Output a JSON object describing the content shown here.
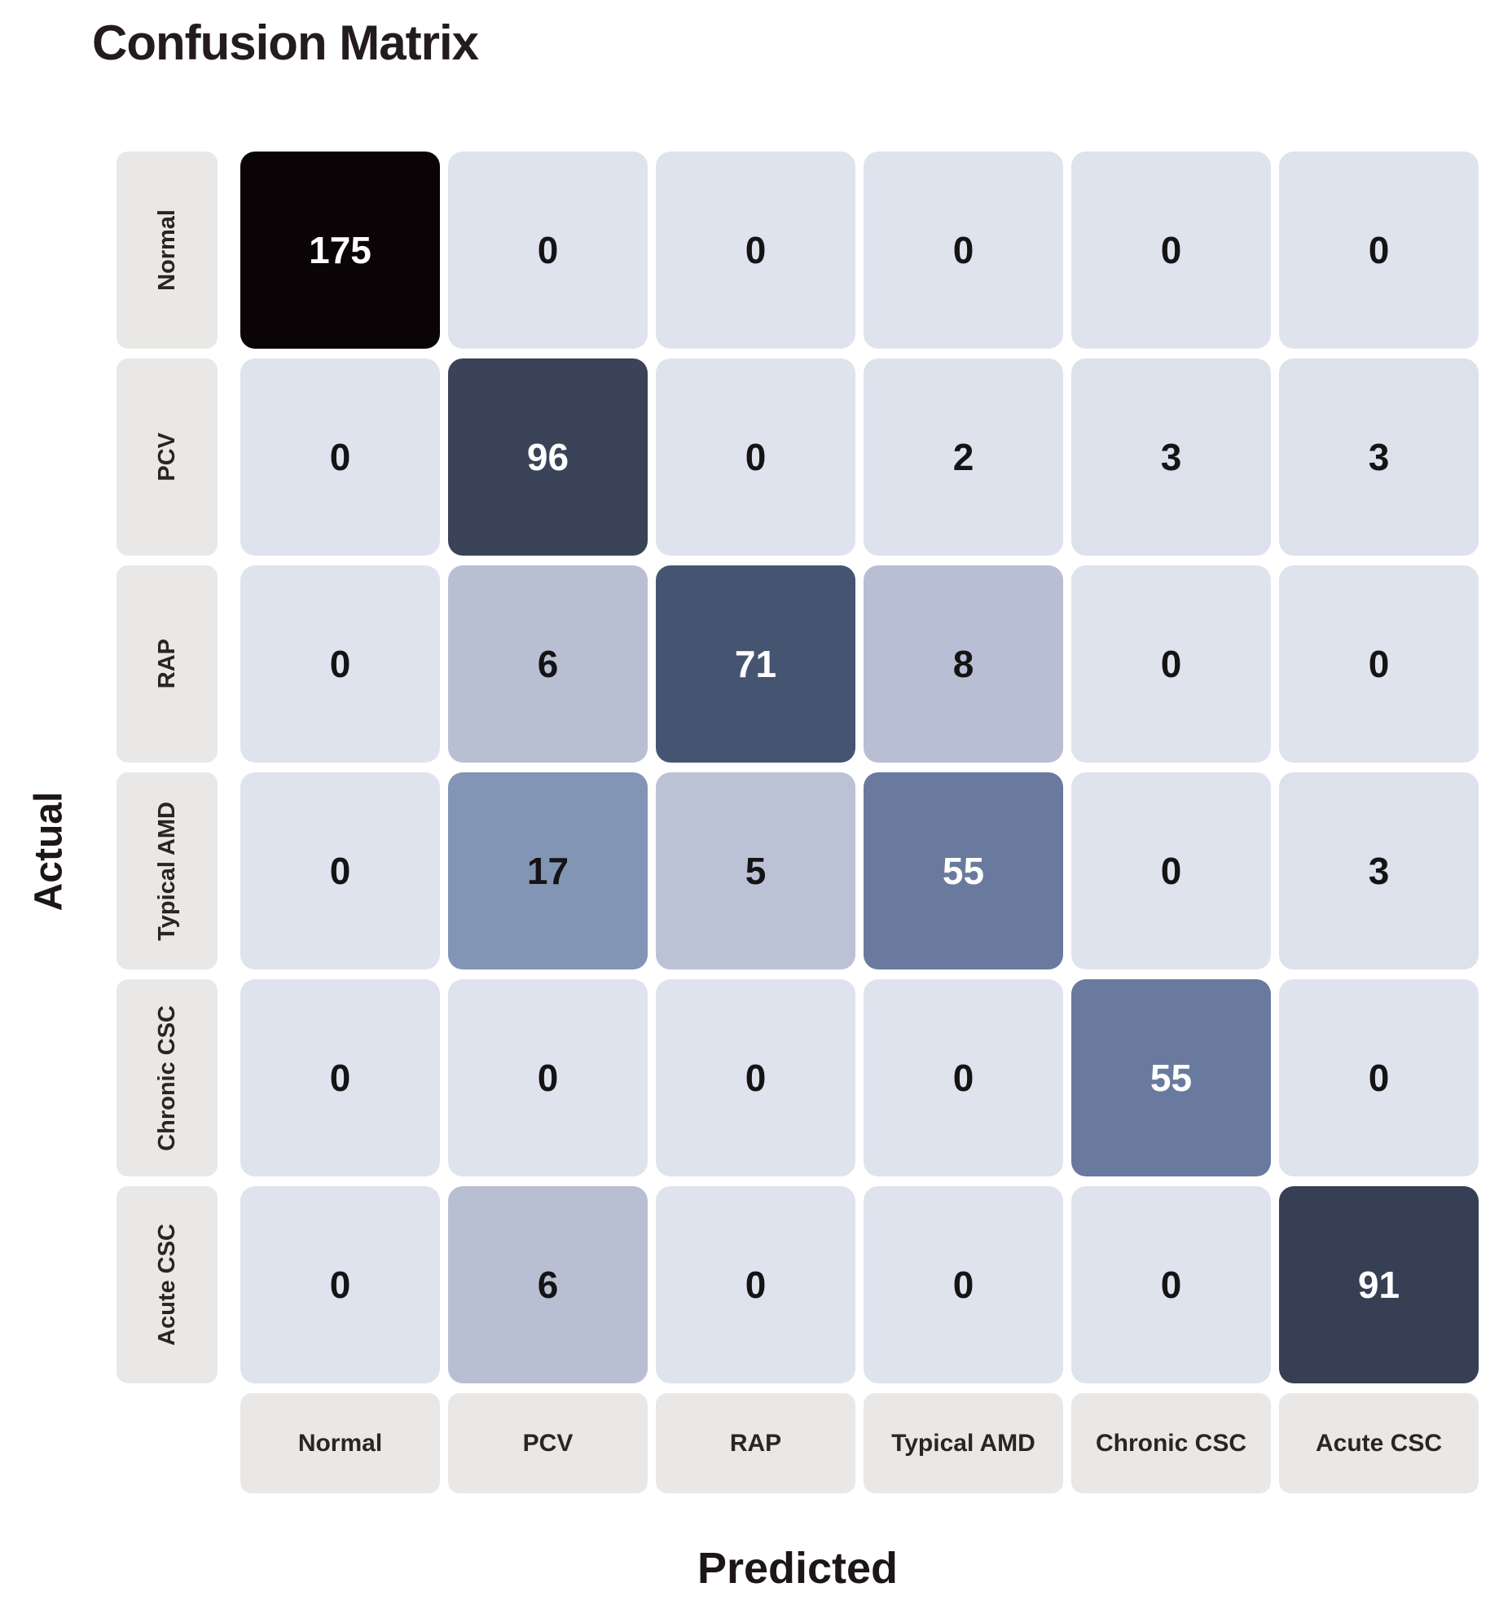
{
  "title": "Confusion Matrix",
  "y_axis_label": "Actual",
  "x_axis_label": "Predicted",
  "chart_data": {
    "type": "heatmap",
    "title": "Confusion Matrix",
    "xlabel": "Predicted",
    "ylabel": "Actual",
    "row_labels": [
      "Normal",
      "PCV",
      "RAP",
      "Typical AMD",
      "Chronic CSC",
      "Acute CSC"
    ],
    "col_labels": [
      "Normal",
      "PCV",
      "RAP",
      "Typical AMD",
      "Chronic CSC",
      "Acute CSC"
    ],
    "matrix": [
      [
        175,
        0,
        0,
        0,
        0,
        0
      ],
      [
        0,
        96,
        0,
        2,
        3,
        3
      ],
      [
        0,
        6,
        71,
        8,
        0,
        0
      ],
      [
        0,
        17,
        5,
        55,
        0,
        3
      ],
      [
        0,
        0,
        0,
        0,
        55,
        0
      ],
      [
        0,
        6,
        0,
        0,
        0,
        91
      ]
    ],
    "cell_colors": [
      [
        "#0a0407",
        "#dfe3ee",
        "#dfe3ee",
        "#dfe3ee",
        "#dfe3ee",
        "#dfe3ee"
      ],
      [
        "#dfe3ee",
        "#3a4357",
        "#dfe3ee",
        "#dde2ed",
        "#dce1ec",
        "#dce1ec"
      ],
      [
        "#dfe3ee",
        "#b9bfd3",
        "#455571",
        "#b8bed3",
        "#dfe3ee",
        "#dfe3ee"
      ],
      [
        "#dfe3ee",
        "#8395b5",
        "#bcc2d6",
        "#697a9e",
        "#dfe3ee",
        "#dce1ec"
      ],
      [
        "#dfe3ee",
        "#dfe3ee",
        "#dfe3ee",
        "#dfe3ee",
        "#697a9e",
        "#dfe3ee"
      ],
      [
        "#dfe3ee",
        "#b9bfd3",
        "#dfe3ee",
        "#dfe3ee",
        "#dfe3ee",
        "#363f53"
      ]
    ],
    "colors": {
      "label_cell_bg": "#e9e8e7",
      "zero_cell_bg": "#dfe3ee",
      "max_cell_bg": "#0a0407",
      "light_text": "#ffffff",
      "dark_text": "#141414",
      "title_color": "#241c1c"
    },
    "legend": "none",
    "grid": "off"
  }
}
